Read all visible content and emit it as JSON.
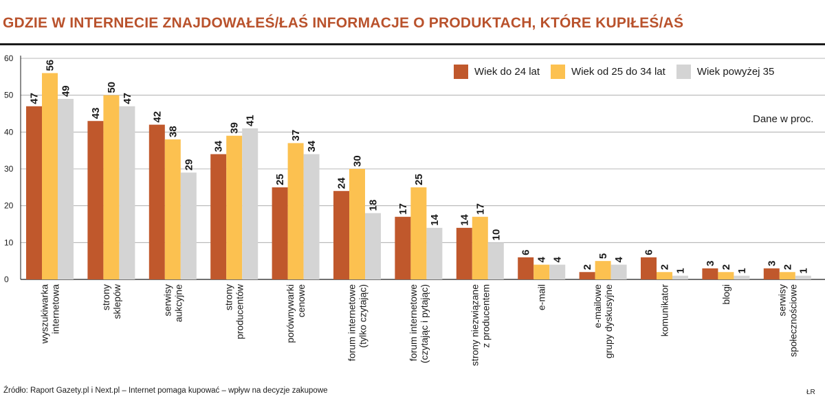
{
  "header": {
    "title": "GDZIE W INTERNECIE ZNAJDOWAŁEŚ/ŁAŚ INFORMACJE O PRODUKTACH, KTÓRE KUPIŁEŚ/AŚ"
  },
  "note": "Dane w proc.",
  "footer": {
    "source": "Źródło: Raport Gazety.pl i Next.pl – Internet pomaga kupować – wpływ na decyzje zakupowe",
    "credit": "ŁR"
  },
  "legend": [
    {
      "label": "Wiek do 24 lat",
      "color": "#c0582c"
    },
    {
      "label": "Wiek od 25 do 34 lat",
      "color": "#fcc150"
    },
    {
      "label": "Wiek powyżej 35",
      "color": "#d4d4d4"
    }
  ],
  "chart_data": {
    "type": "bar",
    "title": "GDZIE W INTERNECIE ZNAJDOWAŁEŚ/ŁAŚ INFORMACJE O PRODUKTACH, KTÓRE KUPIŁEŚ/AŚ",
    "ylim": [
      0,
      60
    ],
    "yticks": [
      0,
      10,
      20,
      30,
      40,
      50,
      60
    ],
    "grid": true,
    "legend_position": "top-right",
    "categories": [
      [
        "wyszukiwarka",
        "internetowa"
      ],
      [
        "strony",
        "sklepów"
      ],
      [
        "serwisy",
        "aukcyjne"
      ],
      [
        "strony",
        "producentów"
      ],
      [
        "porównywarki",
        "cenowe"
      ],
      [
        "forum internetowe",
        "(tylko czytając)"
      ],
      [
        "forum internetowe",
        "(czytając i pytając)"
      ],
      [
        "strony niezwiązane",
        "z producentem"
      ],
      [
        "e-mail"
      ],
      [
        "e-mailowe",
        "grupy dyskusyjne"
      ],
      [
        "komunikator"
      ],
      [
        "blogi"
      ],
      [
        "serwisy",
        "społecznościowe"
      ]
    ],
    "series": [
      {
        "name": "Wiek do 24 lat",
        "color": "#c0582c",
        "values": [
          47,
          43,
          42,
          34,
          25,
          24,
          17,
          14,
          6,
          2,
          6,
          3,
          3
        ]
      },
      {
        "name": "Wiek od 25 do 34 lat",
        "color": "#fcc150",
        "values": [
          56,
          50,
          38,
          39,
          37,
          30,
          25,
          17,
          4,
          5,
          2,
          2,
          2
        ]
      },
      {
        "name": "Wiek powyżej 35",
        "color": "#d4d4d4",
        "values": [
          49,
          47,
          29,
          41,
          34,
          18,
          14,
          10,
          4,
          4,
          1,
          1,
          1
        ]
      }
    ]
  }
}
